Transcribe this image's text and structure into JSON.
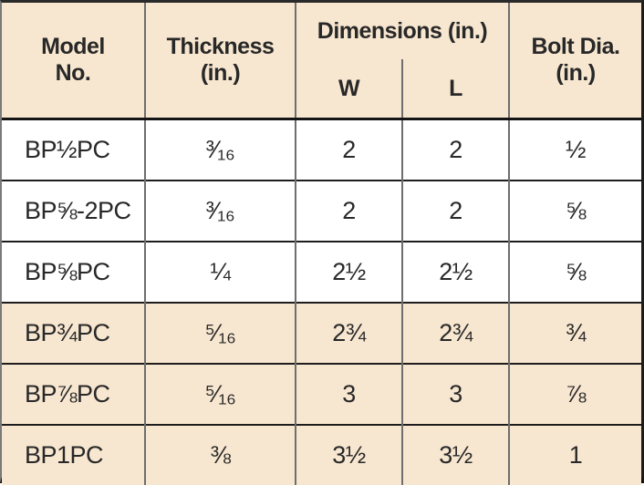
{
  "colors": {
    "header_bg": "#f8e7d0",
    "shaded_row_bg": "#f8e7d0",
    "white_row_bg": "#ffffff",
    "rule_vertical": "#6e6e6e",
    "rule_horizontal": "#1d1d1d",
    "text": "#282828"
  },
  "table": {
    "header": {
      "model": "Model\nNo.",
      "thickness": "Thickness\n(in.)",
      "dimensions_group": "Dimensions (in.)",
      "w": "W",
      "l": "L",
      "bolt": "Bolt Dia.\n(in.)"
    },
    "rows": [
      {
        "model": "BP½PC",
        "thickness": "³⁄₁₆",
        "w": "2",
        "l": "2",
        "bolt": "½",
        "shaded": false
      },
      {
        "model": "BP⅝-2PC",
        "thickness": "³⁄₁₆",
        "w": "2",
        "l": "2",
        "bolt": "⅝",
        "shaded": false
      },
      {
        "model": "BP⅝PC",
        "thickness": "¼",
        "w": "2½",
        "l": "2½",
        "bolt": "⅝",
        "shaded": false
      },
      {
        "model": "BP¾PC",
        "thickness": "⁵⁄₁₆",
        "w": "2¾",
        "l": "2¾",
        "bolt": "¾",
        "shaded": true
      },
      {
        "model": "BP⅞PC",
        "thickness": "⁵⁄₁₆",
        "w": "3",
        "l": "3",
        "bolt": "⅞",
        "shaded": true
      },
      {
        "model": "BP1PC",
        "thickness": "⅜",
        "w": "3½",
        "l": "3½",
        "bolt": "1",
        "shaded": true
      }
    ]
  }
}
